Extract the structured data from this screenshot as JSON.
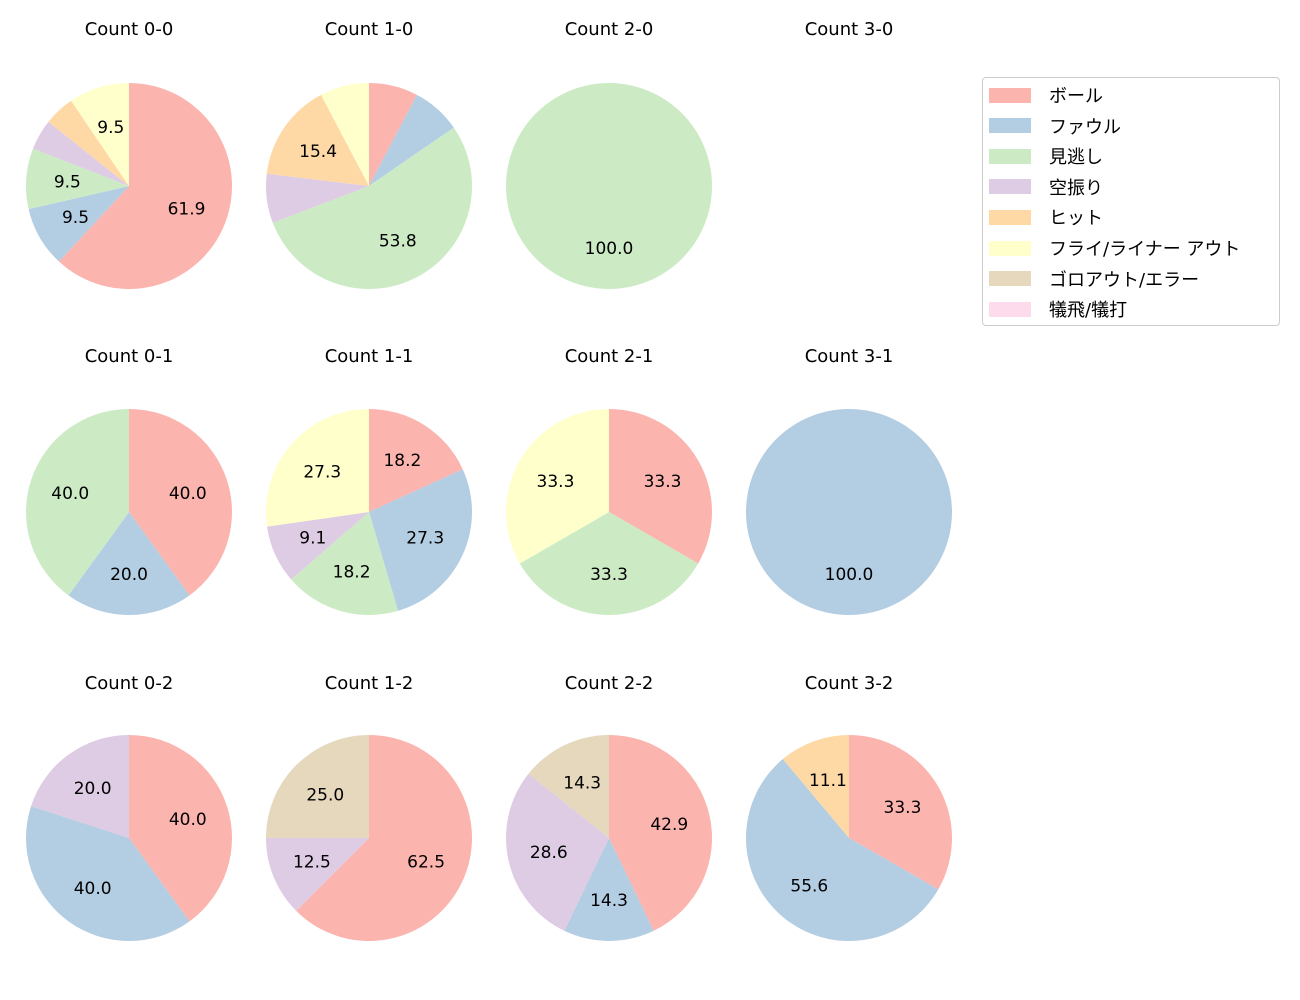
{
  "chart_data": {
    "type": "pie",
    "categories": [
      "ボール",
      "ファウル",
      "見逃し",
      "空振り",
      "ヒット",
      "フライ/ライナー アウト",
      "ゴロアウト/エラー",
      "犠飛/犠打"
    ],
    "colors": [
      "#fbb4ae",
      "#b3cde3",
      "#ccebc5",
      "#decbe4",
      "#fed9a6",
      "#ffffcc",
      "#e5d8bd",
      "#fddaec"
    ],
    "legend_position": "right",
    "charts": [
      {
        "title": "Count 0-0",
        "values": [
          61.9,
          9.5,
          9.5,
          4.8,
          4.8,
          9.5,
          0,
          0
        ]
      },
      {
        "title": "Count 1-0",
        "values": [
          7.7,
          7.7,
          53.8,
          7.7,
          15.4,
          7.7,
          0,
          0
        ]
      },
      {
        "title": "Count 2-0",
        "values": [
          0,
          0,
          100.0,
          0,
          0,
          0,
          0,
          0
        ]
      },
      {
        "title": "Count 3-0",
        "values": [
          0,
          0,
          0,
          0,
          0,
          0,
          0,
          0
        ]
      },
      {
        "title": "Count 0-1",
        "values": [
          40.0,
          20.0,
          40.0,
          0,
          0,
          0,
          0,
          0
        ]
      },
      {
        "title": "Count 1-1",
        "values": [
          18.2,
          27.3,
          18.2,
          9.1,
          0,
          27.3,
          0,
          0
        ]
      },
      {
        "title": "Count 2-1",
        "values": [
          33.3,
          0,
          33.3,
          0,
          0,
          33.3,
          0,
          0
        ]
      },
      {
        "title": "Count 3-1",
        "values": [
          0,
          100.0,
          0,
          0,
          0,
          0,
          0,
          0
        ]
      },
      {
        "title": "Count 0-2",
        "values": [
          40.0,
          40.0,
          0,
          20.0,
          0,
          0,
          0,
          0
        ]
      },
      {
        "title": "Count 1-2",
        "values": [
          62.5,
          0,
          0,
          12.5,
          0,
          0,
          25.0,
          0
        ]
      },
      {
        "title": "Count 2-2",
        "values": [
          42.9,
          14.3,
          0,
          28.6,
          0,
          0,
          14.3,
          0
        ]
      },
      {
        "title": "Count 3-2",
        "values": [
          33.3,
          55.6,
          0,
          0,
          11.1,
          0,
          0,
          0
        ]
      }
    ]
  }
}
